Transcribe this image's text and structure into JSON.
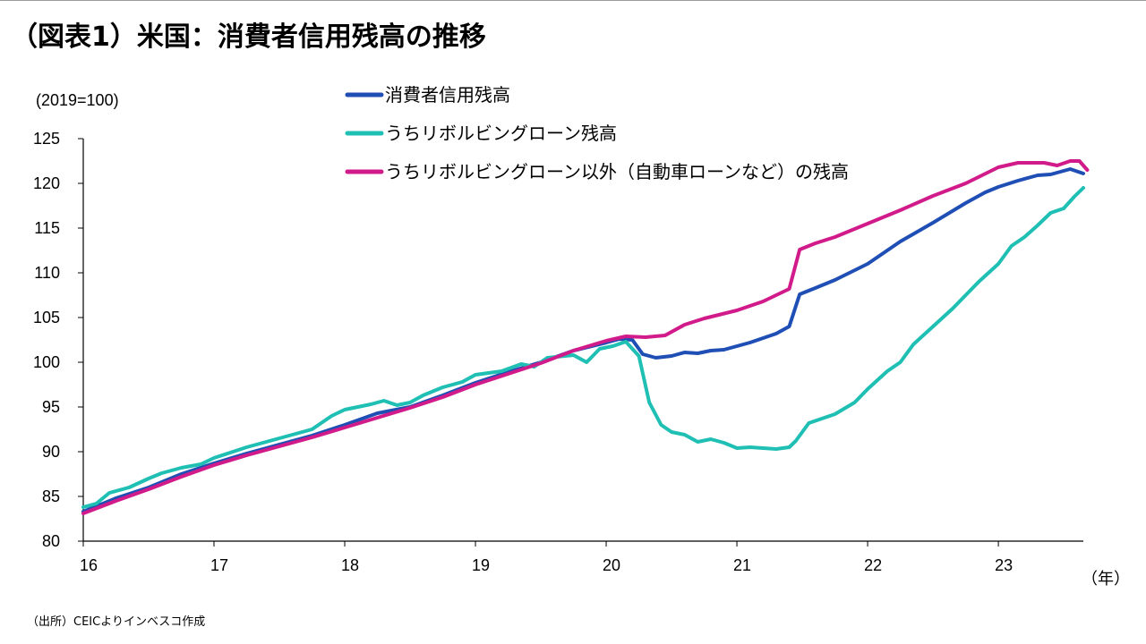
{
  "page": {
    "title": "（図表1）米国：消費者信用残高の推移",
    "source": "（出所）CEICよりインベスコ作成"
  },
  "chart_data": {
    "type": "line",
    "unit_label": "(2019=100)",
    "x_unit_label": "（年）",
    "ylim": [
      80,
      125
    ],
    "y_ticks": [
      80,
      85,
      90,
      95,
      100,
      105,
      110,
      115,
      120,
      125
    ],
    "x_ticks": [
      "16",
      "17",
      "18",
      "19",
      "20",
      "21",
      "22",
      "23"
    ],
    "xlim": [
      2016.0,
      2023.65
    ],
    "grid": false,
    "legend_position": "top-center",
    "series": [
      {
        "name": "消費者信用残高",
        "color": "#1f4fb5",
        "points": [
          [
            2016.0,
            83.3
          ],
          [
            2016.25,
            84.8
          ],
          [
            2016.5,
            86.0
          ],
          [
            2016.75,
            87.5
          ],
          [
            2017.0,
            88.7
          ],
          [
            2017.25,
            89.8
          ],
          [
            2017.5,
            90.8
          ],
          [
            2017.75,
            91.8
          ],
          [
            2018.0,
            93.0
          ],
          [
            2018.25,
            94.3
          ],
          [
            2018.5,
            95.0
          ],
          [
            2018.75,
            96.3
          ],
          [
            2019.0,
            97.7
          ],
          [
            2019.25,
            98.9
          ],
          [
            2019.5,
            100.0
          ],
          [
            2019.75,
            101.3
          ],
          [
            2020.0,
            102.2
          ],
          [
            2020.1,
            102.6
          ],
          [
            2020.2,
            102.5
          ],
          [
            2020.28,
            100.9
          ],
          [
            2020.38,
            100.5
          ],
          [
            2020.5,
            100.7
          ],
          [
            2020.6,
            101.1
          ],
          [
            2020.7,
            101.0
          ],
          [
            2020.8,
            101.3
          ],
          [
            2020.9,
            101.4
          ],
          [
            2021.0,
            101.8
          ],
          [
            2021.1,
            102.2
          ],
          [
            2021.2,
            102.7
          ],
          [
            2021.3,
            103.2
          ],
          [
            2021.4,
            104.0
          ],
          [
            2021.48,
            107.6
          ],
          [
            2021.6,
            108.3
          ],
          [
            2021.75,
            109.2
          ],
          [
            2022.0,
            111.0
          ],
          [
            2022.25,
            113.5
          ],
          [
            2022.5,
            115.6
          ],
          [
            2022.75,
            117.8
          ],
          [
            2022.9,
            119.0
          ],
          [
            2023.0,
            119.6
          ],
          [
            2023.15,
            120.3
          ],
          [
            2023.3,
            120.9
          ],
          [
            2023.4,
            121.0
          ],
          [
            2023.55,
            121.6
          ],
          [
            2023.65,
            121.1
          ]
        ]
      },
      {
        "name": "うちリボルビングローン残高",
        "color": "#1fbfb4",
        "points": [
          [
            2016.0,
            83.8
          ],
          [
            2016.1,
            84.2
          ],
          [
            2016.2,
            85.4
          ],
          [
            2016.35,
            86.0
          ],
          [
            2016.5,
            87.0
          ],
          [
            2016.6,
            87.6
          ],
          [
            2016.75,
            88.2
          ],
          [
            2016.9,
            88.6
          ],
          [
            2017.0,
            89.3
          ],
          [
            2017.25,
            90.5
          ],
          [
            2017.5,
            91.5
          ],
          [
            2017.75,
            92.5
          ],
          [
            2017.9,
            94.0
          ],
          [
            2018.0,
            94.7
          ],
          [
            2018.2,
            95.3
          ],
          [
            2018.3,
            95.7
          ],
          [
            2018.4,
            95.2
          ],
          [
            2018.5,
            95.5
          ],
          [
            2018.6,
            96.3
          ],
          [
            2018.75,
            97.2
          ],
          [
            2018.9,
            97.8
          ],
          [
            2019.0,
            98.6
          ],
          [
            2019.2,
            99.0
          ],
          [
            2019.35,
            99.8
          ],
          [
            2019.45,
            99.5
          ],
          [
            2019.55,
            100.5
          ],
          [
            2019.75,
            100.8
          ],
          [
            2019.85,
            100.0
          ],
          [
            2019.95,
            101.5
          ],
          [
            2020.05,
            101.8
          ],
          [
            2020.15,
            102.3
          ],
          [
            2020.25,
            100.7
          ],
          [
            2020.33,
            95.5
          ],
          [
            2020.42,
            93.0
          ],
          [
            2020.5,
            92.2
          ],
          [
            2020.6,
            91.9
          ],
          [
            2020.7,
            91.1
          ],
          [
            2020.8,
            91.4
          ],
          [
            2020.9,
            91.0
          ],
          [
            2021.0,
            90.4
          ],
          [
            2021.1,
            90.5
          ],
          [
            2021.2,
            90.4
          ],
          [
            2021.3,
            90.3
          ],
          [
            2021.4,
            90.5
          ],
          [
            2021.45,
            91.2
          ],
          [
            2021.55,
            93.2
          ],
          [
            2021.75,
            94.2
          ],
          [
            2021.9,
            95.5
          ],
          [
            2022.0,
            97.0
          ],
          [
            2022.15,
            99.0
          ],
          [
            2022.25,
            100.0
          ],
          [
            2022.35,
            102.0
          ],
          [
            2022.5,
            104.0
          ],
          [
            2022.65,
            106.0
          ],
          [
            2022.75,
            107.5
          ],
          [
            2022.85,
            109.0
          ],
          [
            2023.0,
            111.0
          ],
          [
            2023.1,
            113.0
          ],
          [
            2023.2,
            114.0
          ],
          [
            2023.3,
            115.3
          ],
          [
            2023.4,
            116.7
          ],
          [
            2023.5,
            117.2
          ],
          [
            2023.58,
            118.5
          ],
          [
            2023.65,
            119.5
          ]
        ]
      },
      {
        "name": "うちリボルビングローン以外（自動車ローンなど）の残高",
        "color": "#d21b8a",
        "points": [
          [
            2016.0,
            83.1
          ],
          [
            2016.25,
            84.5
          ],
          [
            2016.5,
            85.8
          ],
          [
            2016.75,
            87.2
          ],
          [
            2017.0,
            88.5
          ],
          [
            2017.25,
            89.6
          ],
          [
            2017.5,
            90.6
          ],
          [
            2017.75,
            91.6
          ],
          [
            2018.0,
            92.7
          ],
          [
            2018.25,
            93.8
          ],
          [
            2018.5,
            94.9
          ],
          [
            2018.75,
            96.1
          ],
          [
            2019.0,
            97.5
          ],
          [
            2019.25,
            98.7
          ],
          [
            2019.5,
            99.9
          ],
          [
            2019.75,
            101.3
          ],
          [
            2020.0,
            102.4
          ],
          [
            2020.15,
            102.9
          ],
          [
            2020.3,
            102.8
          ],
          [
            2020.45,
            103.0
          ],
          [
            2020.6,
            104.2
          ],
          [
            2020.75,
            104.9
          ],
          [
            2021.0,
            105.8
          ],
          [
            2021.2,
            106.8
          ],
          [
            2021.4,
            108.2
          ],
          [
            2021.48,
            112.6
          ],
          [
            2021.6,
            113.3
          ],
          [
            2021.75,
            114.0
          ],
          [
            2022.0,
            115.5
          ],
          [
            2022.25,
            117.0
          ],
          [
            2022.5,
            118.6
          ],
          [
            2022.75,
            120.0
          ],
          [
            2023.0,
            121.8
          ],
          [
            2023.15,
            122.3
          ],
          [
            2023.35,
            122.3
          ],
          [
            2023.45,
            122.0
          ],
          [
            2023.55,
            122.5
          ],
          [
            2023.62,
            122.5
          ],
          [
            2023.68,
            121.5
          ]
        ]
      }
    ]
  }
}
